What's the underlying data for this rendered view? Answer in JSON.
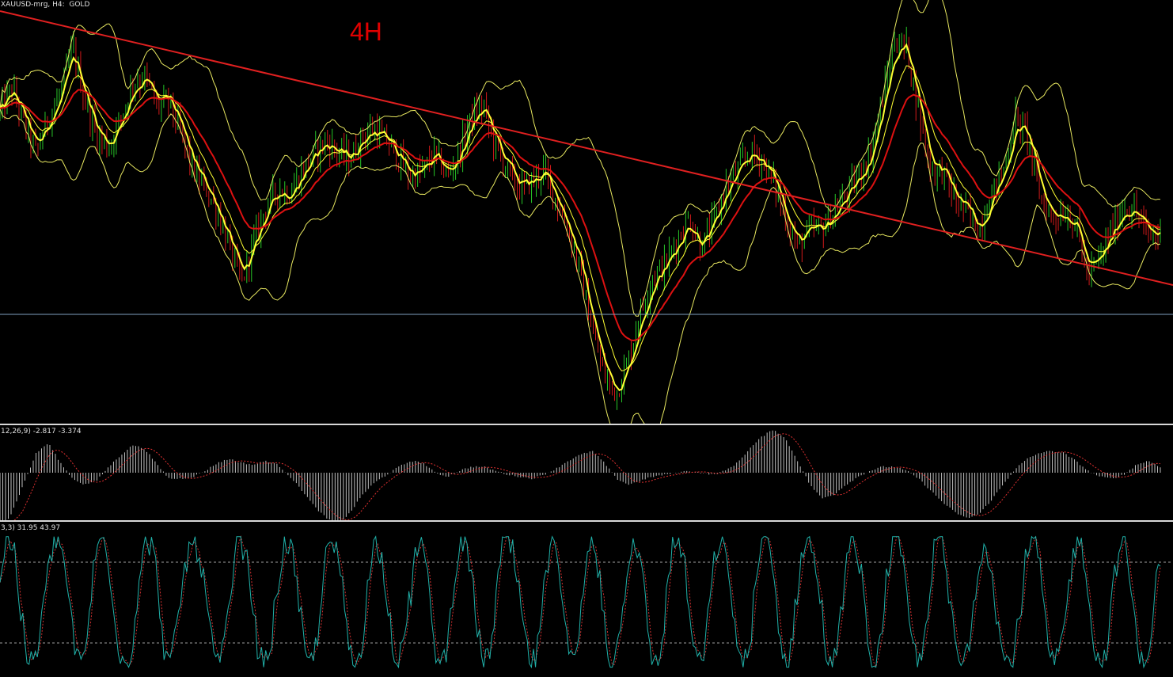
{
  "window": {
    "symbol_label": "XAUUSD-mrg, H4:  GOLD",
    "timeframe_annotation": "4H"
  },
  "panes": {
    "macd_label": "12,26,9) -2.817 -3.374",
    "stoch_label": "3,3) 31.95 43.97"
  },
  "colors": {
    "background": "#000000",
    "price_bar_up": "#27c627",
    "price_bar_down": "#d01a1a",
    "fast_ma": "#ffff33",
    "slow_ma": "#dd1111",
    "bands": "#e8e860",
    "trendline": "#e02020",
    "hline": "#7f9fbf",
    "macd_hist": "#bfbfbf",
    "macd_signal": "#e03030",
    "stoch_main": "#20b2aa",
    "stoch_signal": "#d03030",
    "level_line": "#a0a0a0"
  },
  "chart_data": [
    {
      "type": "line",
      "pane": "price",
      "series": [
        {
          "values": [
            0.4,
            0.8,
            0.2,
            -0.3,
            0.3,
            0.7,
            1.5,
            0.6,
            0.0,
            -0.2,
            0.3,
            0.9,
            1.0,
            0.5,
            0.6,
            0.0,
            -0.6,
            -0.9,
            -1.3,
            -1.9,
            -2.5,
            -1.8,
            -1.2,
            -0.9,
            -1.0,
            -0.6,
            -0.3,
            -0.1,
            -0.3,
            -0.4,
            0.0,
            0.1,
            -0.1,
            -0.4,
            -0.7,
            -0.6,
            -0.3,
            -0.7,
            -0.3,
            0.3,
            0.5,
            -0.2,
            -0.6,
            -0.9,
            -0.8,
            -0.6,
            -1.1,
            -1.6,
            -2.3,
            -3.3,
            -4.1,
            -4.4,
            -3.8,
            -3.0,
            -2.4,
            -2.2,
            -1.8,
            -1.4,
            -1.9,
            -1.5,
            -0.9,
            -0.6,
            -0.3,
            -0.4,
            -0.8,
            -1.4,
            -1.9,
            -1.6,
            -1.6,
            -1.3,
            -1.0,
            -0.7,
            -0.3,
            0.6,
            1.6,
            1.5,
            0.4,
            -0.6,
            -0.6,
            -1.1,
            -1.3,
            -1.6,
            -1.0,
            -0.6,
            0.3,
            0.0,
            -1.0,
            -1.4,
            -1.3,
            -1.5,
            -2.4,
            -2.1,
            -1.6,
            -1.2,
            -1.3,
            -1.7,
            -1.7
          ],
          "note": ""
        }
      ]
    },
    {
      "type": "bar",
      "pane": "macd",
      "series": [
        {
          "values": [
            -3.0,
            -2.0,
            -0.5,
            1.0,
            1.5,
            0.5,
            -0.3,
            -0.6,
            -0.4,
            0.3,
            0.9,
            1.4,
            1.2,
            0.4,
            -0.3,
            -0.3,
            -0.2,
            0.1,
            0.5,
            0.7,
            0.5,
            0.4,
            0.6,
            0.4,
            -0.2,
            -0.9,
            -1.7,
            -2.3,
            -2.6,
            -2.0,
            -1.1,
            -0.5,
            -0.1,
            0.3,
            0.6,
            0.5,
            0.0,
            -0.2,
            0.1,
            0.3,
            0.3,
            0.1,
            -0.1,
            -0.2,
            -0.3,
            -0.1,
            0.2,
            0.6,
            0.9,
            1.1,
            0.5,
            -0.3,
            -0.6,
            -0.4,
            -0.2,
            -0.1,
            0.0,
            0.1,
            0.0,
            -0.1,
            0.1,
            0.5,
            1.2,
            1.8,
            2.2,
            1.7,
            0.6,
            -0.6,
            -1.3,
            -1.1,
            -0.6,
            -0.2,
            0.1,
            0.3,
            0.3,
            0.1,
            -0.3,
            -0.9,
            -1.5,
            -2.0,
            -2.3,
            -2.1,
            -1.4,
            -0.6,
            0.2,
            0.7,
            1.0,
            1.1,
            1.0,
            0.6,
            0.1,
            -0.2,
            -0.3,
            -0.1,
            0.4,
            0.6,
            0.3
          ],
          "note": ""
        }
      ]
    },
    {
      "type": "line",
      "pane": "stochastic",
      "ylim": [
        0,
        100
      ],
      "levels": [
        80,
        20
      ]
    }
  ]
}
